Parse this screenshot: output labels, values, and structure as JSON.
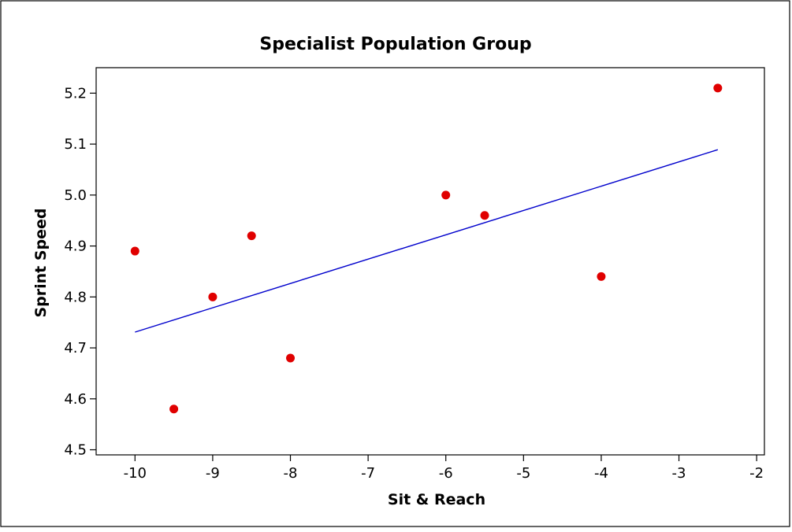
{
  "chart_data": {
    "type": "scatter",
    "title": "Specialist Population Group",
    "xlabel": "Sit & Reach",
    "ylabel": "Sprint Speed",
    "xlim": [
      -10.5,
      -1.9
    ],
    "ylim": [
      4.49,
      5.25
    ],
    "xticks": [
      -10,
      -9,
      -8,
      -7,
      -6,
      -5,
      -4,
      -3,
      -2
    ],
    "yticks": [
      4.5,
      4.6,
      4.7,
      4.8,
      4.9,
      5.0,
      5.1,
      5.2
    ],
    "xtick_labels": [
      "-10",
      "-9",
      "-8",
      "-7",
      "-6",
      "-5",
      "-4",
      "-3",
      "-2"
    ],
    "ytick_labels": [
      "4.5",
      "4.6",
      "4.7",
      "4.8",
      "4.9",
      "5.0",
      "5.1",
      "5.2"
    ],
    "grid": false,
    "series": [
      {
        "points": [
          {
            "x": -10,
            "y": 4.89
          },
          {
            "x": -9.5,
            "y": 4.58
          },
          {
            "x": -9,
            "y": 4.8
          },
          {
            "x": -8.5,
            "y": 4.92
          },
          {
            "x": -8,
            "y": 4.68
          },
          {
            "x": -6,
            "y": 5.0
          },
          {
            "x": -5.5,
            "y": 4.96
          },
          {
            "x": -4,
            "y": 4.84
          },
          {
            "x": -2.5,
            "y": 5.21
          }
        ],
        "color": "#e00000"
      }
    ],
    "fit_line": {
      "x": [
        -10,
        -2.5
      ],
      "y": [
        4.731,
        5.089
      ],
      "color": "#0000cc"
    }
  }
}
